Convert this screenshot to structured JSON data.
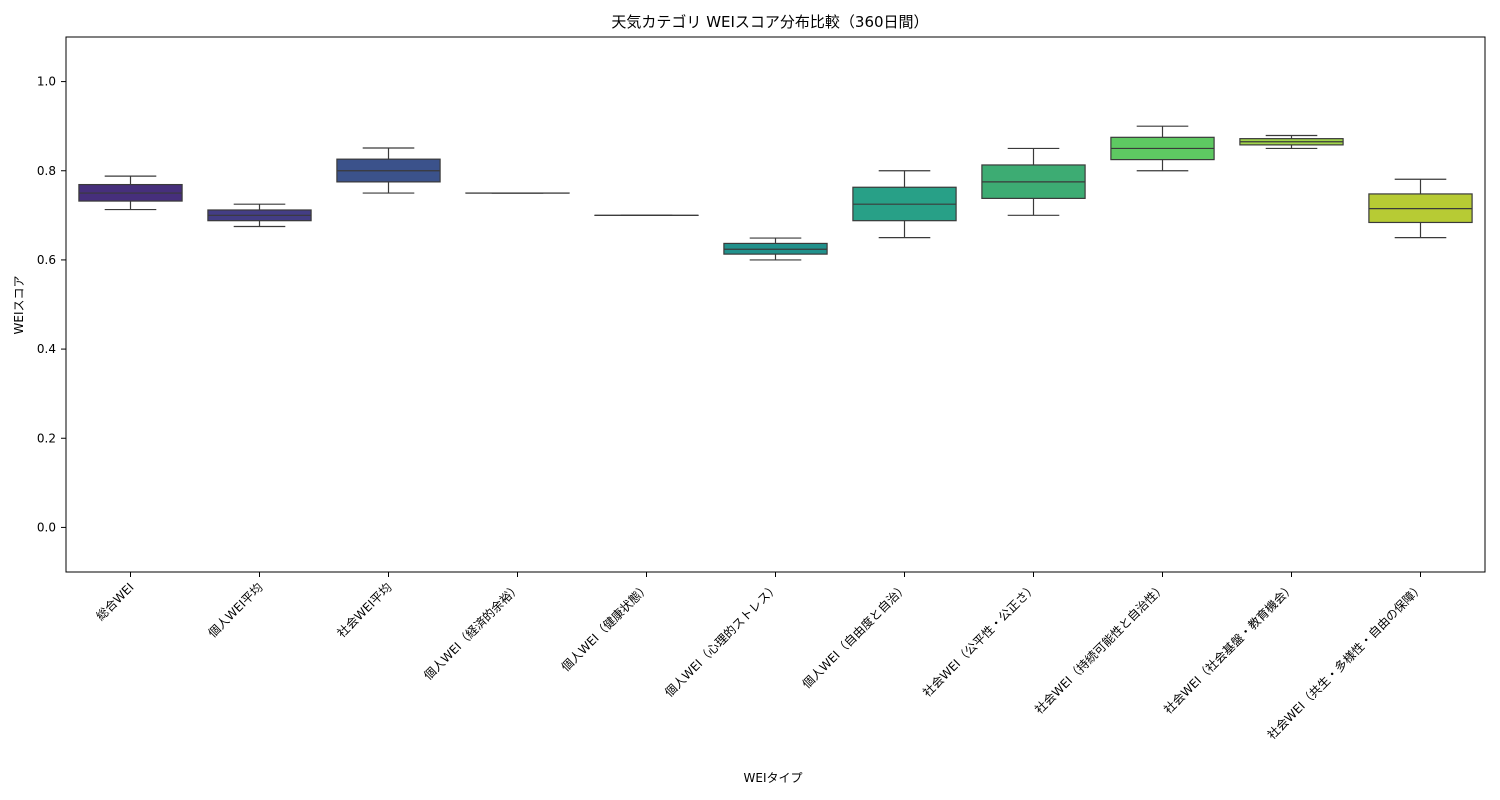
{
  "chart_data": {
    "type": "box",
    "title": "天気カテゴリ WEIスコア分布比較（360日間）",
    "xlabel": "WEIタイプ",
    "ylabel": "WEIスコア",
    "ylim": [
      -0.1,
      1.1
    ],
    "yticks": [
      0.0,
      0.2,
      0.4,
      0.6,
      0.8,
      1.0
    ],
    "ytick_labels": [
      "0.0",
      "0.2",
      "0.4",
      "0.6",
      "0.8",
      "1.0"
    ],
    "grid": false,
    "categories": [
      "総合WEI",
      "個人WEI平均",
      "社会WEI平均",
      "個人WEI（経済的余裕）",
      "個人WEI（健康状態）",
      "個人WEI（心理的ストレス）",
      "個人WEI（自由度と自治）",
      "社会WEI（公平性・公正さ）",
      "社会WEI（持続可能性と自治性）",
      "社会WEI（社会基盤・教育機会）",
      "社会WEI（共生・多様性・自由の保障）"
    ],
    "boxes": [
      {
        "whisker_low": 0.713,
        "q1": 0.732,
        "median": 0.75,
        "q3": 0.769,
        "whisker_high": 0.788,
        "color": "#462f7c"
      },
      {
        "whisker_low": 0.675,
        "q1": 0.688,
        "median": 0.7,
        "q3": 0.712,
        "whisker_high": 0.725,
        "color": "#433d84"
      },
      {
        "whisker_low": 0.75,
        "q1": 0.775,
        "median": 0.8,
        "q3": 0.826,
        "whisker_high": 0.851,
        "color": "#3b528b"
      },
      {
        "whisker_low": 0.75,
        "q1": 0.75,
        "median": 0.75,
        "q3": 0.75,
        "whisker_high": 0.75,
        "color": "#32648e"
      },
      {
        "whisker_low": 0.7,
        "q1": 0.7,
        "median": 0.7,
        "q3": 0.7,
        "whisker_high": 0.7,
        "color": "#2c728e"
      },
      {
        "whisker_low": 0.6,
        "q1": 0.613,
        "median": 0.624,
        "q3": 0.637,
        "whisker_high": 0.649,
        "color": "#21918c"
      },
      {
        "whisker_low": 0.65,
        "q1": 0.688,
        "median": 0.725,
        "q3": 0.763,
        "whisker_high": 0.8,
        "color": "#28a087"
      },
      {
        "whisker_low": 0.7,
        "q1": 0.738,
        "median": 0.775,
        "q3": 0.813,
        "whisker_high": 0.85,
        "color": "#3dac73"
      },
      {
        "whisker_low": 0.8,
        "q1": 0.825,
        "median": 0.85,
        "q3": 0.875,
        "whisker_high": 0.9,
        "color": "#5ec962"
      },
      {
        "whisker_low": 0.85,
        "q1": 0.858,
        "median": 0.865,
        "q3": 0.872,
        "whisker_high": 0.879,
        "color": "#a0d44a"
      },
      {
        "whisker_low": 0.65,
        "q1": 0.684,
        "median": 0.715,
        "q3": 0.748,
        "whisker_high": 0.781,
        "color": "#b7cb34"
      }
    ]
  }
}
